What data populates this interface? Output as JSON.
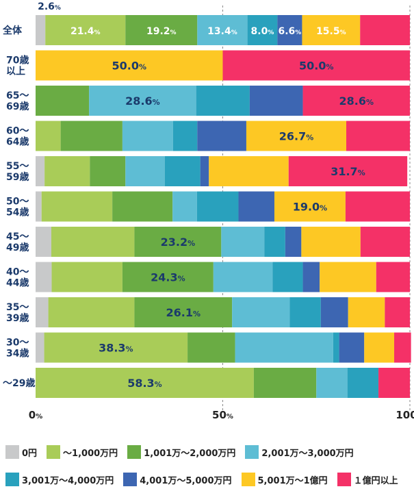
{
  "chart_data": {
    "type": "stacked-bar-horizontal",
    "categories": [
      "全体",
      "70歳\n以上",
      "65～\n69歳",
      "60～\n64歳",
      "55～\n59歳",
      "50～\n54歳",
      "45～\n49歳",
      "40～\n44歳",
      "35～\n39歳",
      "30～\n34歳",
      "～29歳"
    ],
    "series": [
      {
        "name": "0円",
        "color": "#c8c9ca",
        "values": [
          2.6,
          0.0,
          0.0,
          0.0,
          2.4,
          1.6,
          4.2,
          4.3,
          3.4,
          2.3,
          0.0
        ]
      },
      {
        "name": "～1,000万円",
        "color": "#a9cc58",
        "values": [
          21.4,
          0.0,
          0.0,
          6.7,
          12.1,
          18.9,
          22.2,
          18.9,
          23.0,
          38.3,
          58.3
        ]
      },
      {
        "name": "1,001万～2,000万円",
        "color": "#6aac44",
        "values": [
          19.2,
          0.0,
          14.3,
          16.5,
          9.5,
          16.1,
          23.2,
          24.3,
          26.1,
          12.7,
          16.7
        ]
      },
      {
        "name": "2,001万～3,000万円",
        "color": "#5ebdd4",
        "values": [
          13.4,
          0.0,
          28.6,
          13.5,
          10.5,
          6.5,
          11.5,
          15.8,
          15.4,
          26.2,
          8.3
        ]
      },
      {
        "name": "3,001万～4,000万円",
        "color": "#29a1bd",
        "values": [
          8.0,
          0.0,
          14.3,
          6.5,
          9.5,
          11.1,
          5.6,
          8.1,
          8.3,
          1.6,
          8.3
        ]
      },
      {
        "name": "4,001万～5,000万円",
        "color": "#3d66b2",
        "values": [
          6.6,
          0.0,
          14.2,
          13.1,
          2.3,
          9.6,
          4.3,
          4.5,
          7.3,
          6.7,
          0.0
        ]
      },
      {
        "name": "5,001万～1億円",
        "color": "#fdc824",
        "values": [
          15.5,
          50.0,
          0.0,
          26.7,
          21.3,
          19.0,
          15.8,
          15.1,
          9.8,
          8.0,
          0.0
        ]
      },
      {
        "name": "１億円以上",
        "color": "#f43167",
        "values": [
          13.3,
          50.0,
          28.6,
          17.0,
          31.7,
          17.2,
          13.2,
          9.0,
          6.7,
          4.5,
          8.4
        ]
      }
    ],
    "data_labels": [
      {
        "row": 0,
        "series": 0,
        "text": "2.6",
        "pos": "above",
        "color": "#1b3a6b"
      },
      {
        "row": 0,
        "series": 1,
        "text": "21.4",
        "color": "#ffffff"
      },
      {
        "row": 0,
        "series": 2,
        "text": "19.2",
        "color": "#ffffff"
      },
      {
        "row": 0,
        "series": 3,
        "text": "13.4",
        "color": "#ffffff"
      },
      {
        "row": 0,
        "series": 4,
        "text": "8.0",
        "color": "#ffffff"
      },
      {
        "row": 0,
        "series": 5,
        "text": "6.6",
        "color": "#ffffff"
      },
      {
        "row": 0,
        "series": 6,
        "text": "15.5",
        "color": "#ffffff"
      },
      {
        "row": 1,
        "series": 6,
        "text": "50.0",
        "color": "#1b3a6b"
      },
      {
        "row": 1,
        "series": 7,
        "text": "50.0",
        "color": "#1b3a6b"
      },
      {
        "row": 2,
        "series": 3,
        "text": "28.6",
        "color": "#1b3a6b"
      },
      {
        "row": 2,
        "series": 7,
        "text": "28.6",
        "color": "#1b3a6b"
      },
      {
        "row": 3,
        "series": 6,
        "text": "26.7",
        "color": "#1b3a6b"
      },
      {
        "row": 4,
        "series": 7,
        "text": "31.7",
        "color": "#1b3a6b"
      },
      {
        "row": 5,
        "series": 6,
        "text": "19.0",
        "color": "#1b3a6b"
      },
      {
        "row": 6,
        "series": 2,
        "text": "23.2",
        "color": "#1b3a6b"
      },
      {
        "row": 7,
        "series": 2,
        "text": "24.3",
        "color": "#1b3a6b"
      },
      {
        "row": 8,
        "series": 2,
        "text": "26.1",
        "color": "#1b3a6b"
      },
      {
        "row": 9,
        "series": 1,
        "text": "38.3",
        "color": "#1b3a6b"
      },
      {
        "row": 10,
        "series": 1,
        "text": "58.3",
        "color": "#1b3a6b"
      }
    ],
    "label_suffix": "%",
    "xticks": [
      {
        "value": 0,
        "label": "0",
        "suffix": "%"
      },
      {
        "value": 50,
        "label": "50",
        "suffix": "%"
      },
      {
        "value": 100,
        "label": "100",
        "suffix": "%"
      }
    ],
    "xlim": [
      0,
      100
    ],
    "grid": "dashed vertical at 50% and 100%",
    "legend_position": "bottom"
  },
  "colors": {
    "category_label": "#1b3a6b",
    "axis": "#888888"
  }
}
